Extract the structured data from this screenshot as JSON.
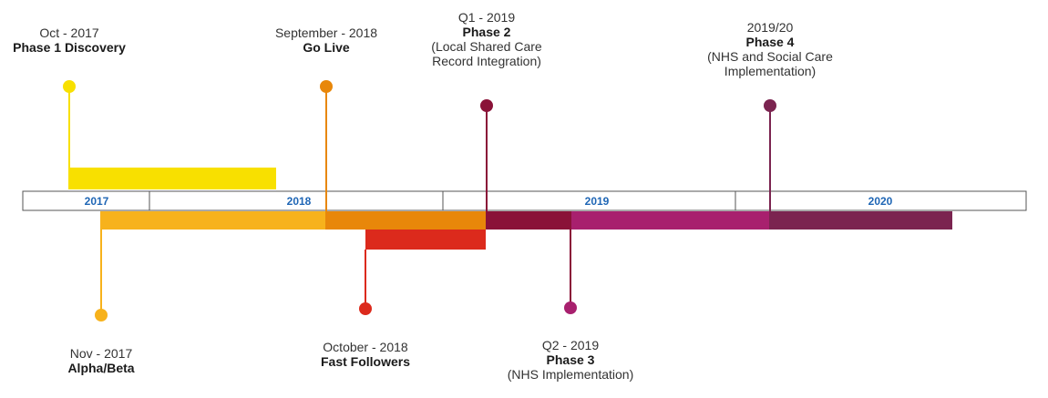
{
  "axis": {
    "years": [
      {
        "label": "2017",
        "key": "y2017"
      },
      {
        "label": "2018",
        "key": "y2018"
      },
      {
        "label": "2019",
        "key": "y2019"
      },
      {
        "label": "2020",
        "key": "y2020"
      }
    ]
  },
  "colors": {
    "year_label": "#1f66b5",
    "axis_border": "#555555",
    "phase1_discovery": "#f8e000",
    "alpha_beta": "#f7b21c",
    "go_live": "#e8870a",
    "fast_followers": "#dc2a1c",
    "phase2": "#8a1238",
    "phase3": "#a8206e",
    "phase4": "#7b2450"
  },
  "milestones": [
    {
      "key": "phase1",
      "date": "Oct - 2017",
      "title": "Phase 1 Discovery",
      "detail": []
    },
    {
      "key": "golive",
      "date": "September - 2018",
      "title": "Go Live",
      "detail": []
    },
    {
      "key": "phase2",
      "date": "Q1 - 2019",
      "title": "Phase 2",
      "detail": [
        "(Local Shared Care",
        "Record Integration)"
      ]
    },
    {
      "key": "phase4",
      "date": "2019/20",
      "title": "Phase 4",
      "detail": [
        "(NHS and Social Care",
        "Implementation)"
      ]
    },
    {
      "key": "alphabeta",
      "date": "Nov - 2017",
      "title": "Alpha/Beta",
      "detail": []
    },
    {
      "key": "fastfollowers",
      "date": "October - 2018",
      "title": "Fast Followers",
      "detail": []
    },
    {
      "key": "phase3",
      "date": "Q2 - 2019",
      "title": "Phase 3",
      "detail": [
        "(NHS Implementation)"
      ]
    }
  ]
}
